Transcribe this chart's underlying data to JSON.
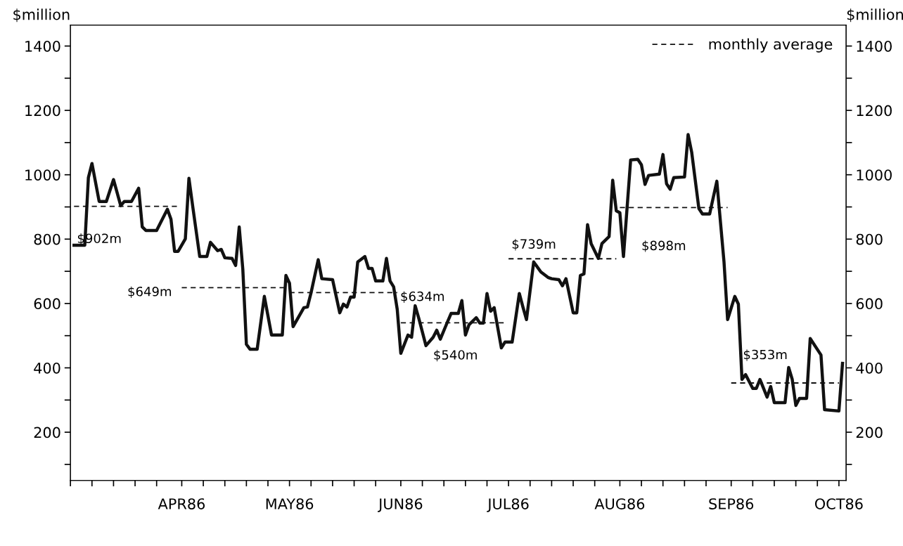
{
  "chart_data": {
    "type": "line",
    "ylabel": "$million",
    "y2label": "$million",
    "xlim": [
      "1986-03-01",
      "1986-10-03"
    ],
    "xticks": [
      {
        "value": "1986-03-01",
        "label": null
      },
      {
        "value": "1986-03-07",
        "label": null
      },
      {
        "value": "1986-03-13",
        "label": null
      },
      {
        "value": "1986-03-19",
        "label": null
      },
      {
        "value": "1986-03-25",
        "label": null
      },
      {
        "value": "1986-04-01",
        "label": "APR86"
      },
      {
        "value": "1986-04-07",
        "label": null
      },
      {
        "value": "1986-04-13",
        "label": null
      },
      {
        "value": "1986-04-19",
        "label": null
      },
      {
        "value": "1986-04-25",
        "label": null
      },
      {
        "value": "1986-05-01",
        "label": "MAY86"
      },
      {
        "value": "1986-05-07",
        "label": null
      },
      {
        "value": "1986-05-13",
        "label": null
      },
      {
        "value": "1986-05-19",
        "label": null
      },
      {
        "value": "1986-05-25",
        "label": null
      },
      {
        "value": "1986-06-01",
        "label": "JUN86"
      },
      {
        "value": "1986-06-07",
        "label": null
      },
      {
        "value": "1986-06-13",
        "label": null
      },
      {
        "value": "1986-06-19",
        "label": null
      },
      {
        "value": "1986-06-25",
        "label": null
      },
      {
        "value": "1986-07-01",
        "label": "JUL86"
      },
      {
        "value": "1986-07-07",
        "label": null
      },
      {
        "value": "1986-07-13",
        "label": null
      },
      {
        "value": "1986-07-19",
        "label": null
      },
      {
        "value": "1986-07-25",
        "label": null
      },
      {
        "value": "1986-08-01",
        "label": "AUG86"
      },
      {
        "value": "1986-08-07",
        "label": null
      },
      {
        "value": "1986-08-13",
        "label": null
      },
      {
        "value": "1986-08-19",
        "label": null
      },
      {
        "value": "1986-08-25",
        "label": null
      },
      {
        "value": "1986-09-01",
        "label": "SEP86"
      },
      {
        "value": "1986-09-07",
        "label": null
      },
      {
        "value": "1986-09-13",
        "label": null
      },
      {
        "value": "1986-09-19",
        "label": null
      },
      {
        "value": "1986-09-25",
        "label": null
      },
      {
        "value": "1986-10-01",
        "label": "OCT86"
      }
    ],
    "ylim": [
      50,
      1465
    ],
    "yticks": [
      {
        "value": 100,
        "label": null
      },
      200,
      {
        "value": 300,
        "label": null
      },
      400,
      {
        "value": 500,
        "label": null
      },
      600,
      {
        "value": 700,
        "label": null
      },
      800,
      {
        "value": 900,
        "label": null
      },
      1000,
      {
        "value": 1100,
        "label": null
      },
      1200,
      {
        "value": 1300,
        "label": null
      },
      1400
    ],
    "y2lim": [
      50,
      1465
    ],
    "y2ticks": [
      {
        "value": 100,
        "label": null
      },
      200,
      {
        "value": 300,
        "label": null
      },
      400,
      {
        "value": 500,
        "label": null
      },
      600,
      {
        "value": 700,
        "label": null
      },
      800,
      {
        "value": 900,
        "label": null
      },
      1000,
      {
        "value": 1100,
        "label": null
      },
      1200,
      {
        "value": 1300,
        "label": null
      },
      1400
    ],
    "grid": false,
    "legend": "top right",
    "series": [
      {
        "color": "#111111",
        "line_style": "solid",
        "x": [
          "1986-03-02",
          "1986-03-05",
          "1986-03-06",
          "1986-03-07",
          "1986-03-09",
          "1986-03-11",
          "1986-03-13",
          "1986-03-15",
          "1986-03-16",
          "1986-03-18",
          "1986-03-20",
          "1986-03-21",
          "1986-03-22",
          "1986-03-25",
          "1986-03-28",
          "1986-03-29",
          "1986-03-30",
          "1986-03-31",
          "1986-04-02",
          "1986-04-03",
          "1986-04-04",
          "1986-04-06",
          "1986-04-08",
          "1986-04-09",
          "1986-04-11",
          "1986-04-12",
          "1986-04-13",
          "1986-04-15",
          "1986-04-16",
          "1986-04-17",
          "1986-04-18",
          "1986-04-19",
          "1986-04-20",
          "1986-04-22",
          "1986-04-24",
          "1986-04-26",
          "1986-04-29",
          "1986-04-30",
          "1986-05-01",
          "1986-05-02",
          "1986-05-05",
          "1986-05-06",
          "1986-05-07",
          "1986-05-09",
          "1986-05-10",
          "1986-05-13",
          "1986-05-15",
          "1986-05-16",
          "1986-05-17",
          "1986-05-18",
          "1986-05-19",
          "1986-05-20",
          "1986-05-22",
          "1986-05-23",
          "1986-05-24",
          "1986-05-25",
          "1986-05-27",
          "1986-05-28",
          "1986-05-29",
          "1986-05-30",
          "1986-05-31",
          "1986-06-01",
          "1986-06-03",
          "1986-06-04",
          "1986-06-05",
          "1986-06-06",
          "1986-06-08",
          "1986-06-10",
          "1986-06-11",
          "1986-06-12",
          "1986-06-14",
          "1986-06-15",
          "1986-06-17",
          "1986-06-18",
          "1986-06-19",
          "1986-06-20",
          "1986-06-22",
          "1986-06-23",
          "1986-06-24",
          "1986-06-25",
          "1986-06-26",
          "1986-06-27",
          "1986-06-29",
          "1986-06-30",
          "1986-07-02",
          "1986-07-04",
          "1986-07-05",
          "1986-07-06",
          "1986-07-08",
          "1986-07-10",
          "1986-07-12",
          "1986-07-13",
          "1986-07-15",
          "1986-07-16",
          "1986-07-17",
          "1986-07-19",
          "1986-07-20",
          "1986-07-21",
          "1986-07-22",
          "1986-07-23",
          "1986-07-24",
          "1986-07-26",
          "1986-07-27",
          "1986-07-29",
          "1986-07-30",
          "1986-07-31",
          "1986-08-01",
          "1986-08-02",
          "1986-08-04",
          "1986-08-06",
          "1986-08-07",
          "1986-08-08",
          "1986-08-09",
          "1986-08-12",
          "1986-08-13",
          "1986-08-14",
          "1986-08-15",
          "1986-08-16",
          "1986-08-19",
          "1986-08-20",
          "1986-08-21",
          "1986-08-23",
          "1986-08-24",
          "1986-08-26",
          "1986-08-28",
          "1986-08-30",
          "1986-08-31",
          "1986-09-02",
          "1986-09-03",
          "1986-09-04",
          "1986-09-05",
          "1986-09-07",
          "1986-09-08",
          "1986-09-09",
          "1986-09-11",
          "1986-09-12",
          "1986-09-13",
          "1986-09-16",
          "1986-09-17",
          "1986-09-18",
          "1986-09-19",
          "1986-09-20",
          "1986-09-22",
          "1986-09-23",
          "1986-09-26",
          "1986-09-27",
          "1986-10-01",
          "1986-10-02"
        ],
        "values": [
          781,
          781,
          991,
          1035,
          917,
          917,
          985,
          904,
          917,
          917,
          958,
          838,
          827,
          827,
          893,
          862,
          762,
          762,
          801,
          989,
          906,
          746,
          746,
          790,
          764,
          768,
          742,
          740,
          718,
          838,
          707,
          473,
          458,
          458,
          622,
          502,
          502,
          687,
          663,
          528,
          587,
          589,
          633,
          736,
          677,
          674,
          571,
          598,
          589,
          620,
          620,
          729,
          746,
          709,
          709,
          670,
          670,
          740,
          670,
          652,
          582,
          445,
          502,
          495,
          593,
          554,
          469,
          495,
          517,
          489,
          543,
          569,
          569,
          609,
          502,
          534,
          556,
          539,
          539,
          631,
          576,
          587,
          462,
          480,
          480,
          631,
          589,
          550,
          729,
          698,
          681,
          677,
          674,
          655,
          677,
          571,
          571,
          687,
          692,
          845,
          786,
          740,
          786,
          808,
          983,
          888,
          882,
          746,
          1046,
          1048,
          1031,
          970,
          998,
          1002,
          1063,
          972,
          955,
          991,
          993,
          1125,
          1070,
          895,
          878,
          878,
          980,
          729,
          550,
          622,
          598,
          364,
          379,
          336,
          336,
          364,
          309,
          342,
          292,
          292,
          401,
          364,
          283,
          305,
          305,
          491,
          440,
          270,
          266,
          414
        ]
      },
      {
        "name": "monthly average",
        "color": "#111111",
        "line_style": "dashed",
        "x": [
          "1986-03-02",
          "1986-03-31",
          "1986-03-31T12:00",
          "1986-04-01",
          "1986-04-30",
          "1986-04-30T12:00",
          "1986-05-01",
          "1986-05-31",
          "1986-05-31T12:00",
          "1986-06-01",
          "1986-06-30",
          "1986-06-30T12:00",
          "1986-07-01",
          "1986-07-31",
          "1986-07-31T12:00",
          "1986-08-01",
          "1986-08-31",
          "1986-08-31T12:00",
          "1986-09-01",
          "1986-10-01"
        ],
        "values": [
          902,
          902,
          null,
          649,
          649,
          null,
          634,
          634,
          null,
          540,
          540,
          null,
          739,
          739,
          null,
          898,
          898,
          null,
          353,
          353
        ]
      }
    ],
    "annotations": [
      {
        "text": "$902m",
        "x": "1986-03-02",
        "y": 902
      },
      {
        "text": "$649m",
        "x": "1986-04-01",
        "y": 649
      },
      {
        "text": "$634m",
        "x": "1986-05-31",
        "y": 634
      },
      {
        "text": "$540m",
        "x": "1986-06-10",
        "y": 540
      },
      {
        "text": "$739m",
        "x": "1986-07-01",
        "y": 739
      },
      {
        "text": "$898m",
        "x": "1986-08-07",
        "y": 898
      },
      {
        "text": "$353m",
        "x": "1986-09-01",
        "y": 353
      }
    ]
  }
}
